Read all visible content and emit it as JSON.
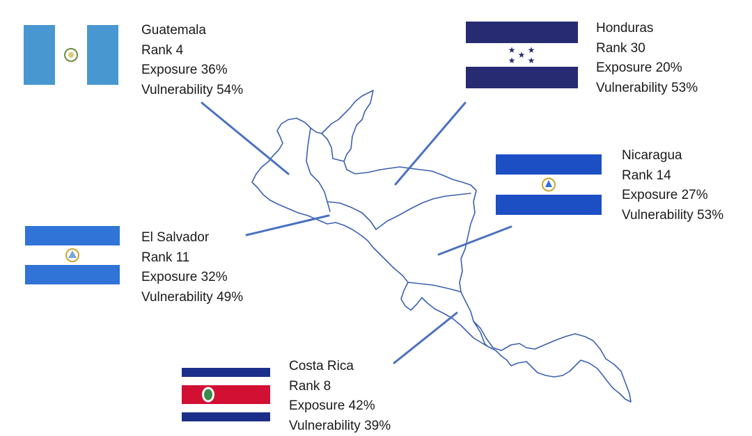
{
  "map": {
    "region": "central-america",
    "outline_color": "#3b5fb0",
    "connector_color": "#4a70bf"
  },
  "labels": {
    "rank_prefix": "Rank",
    "exposure_prefix": "Exposure",
    "vulnerability_prefix": "Vulnerability"
  },
  "countries": [
    {
      "key": "guatemala",
      "name": "Guatemala",
      "rank": "4",
      "exposure": "36%",
      "vulnerability": "54%",
      "flag": "guatemala-flag",
      "flag_colors": [
        "#4997d0",
        "#ffffff"
      ]
    },
    {
      "key": "honduras",
      "name": "Honduras",
      "rank": "30",
      "exposure": "20%",
      "vulnerability": "53%",
      "flag": "honduras-flag",
      "flag_colors": [
        "#262b72",
        "#ffffff"
      ]
    },
    {
      "key": "nicaragua",
      "name": "Nicaragua",
      "rank": "14",
      "exposure": "27%",
      "vulnerability": "53%",
      "flag": "el-salvador-style-flag",
      "flag_colors": [
        "#1c4fc4",
        "#ffffff"
      ]
    },
    {
      "key": "el_salvador",
      "name": "El Salvador",
      "rank": "11",
      "exposure": "32%",
      "vulnerability": "49%",
      "flag": "nicaragua-style-flag",
      "flag_colors": [
        "#2f74d6",
        "#ffffff"
      ]
    },
    {
      "key": "costa_rica",
      "name": "Costa Rica",
      "rank": "8",
      "exposure": "42%",
      "vulnerability": "39%",
      "flag": "costa-rica-flag",
      "flag_colors": [
        "#1b2f8a",
        "#ffffff",
        "#d21034"
      ]
    }
  ]
}
